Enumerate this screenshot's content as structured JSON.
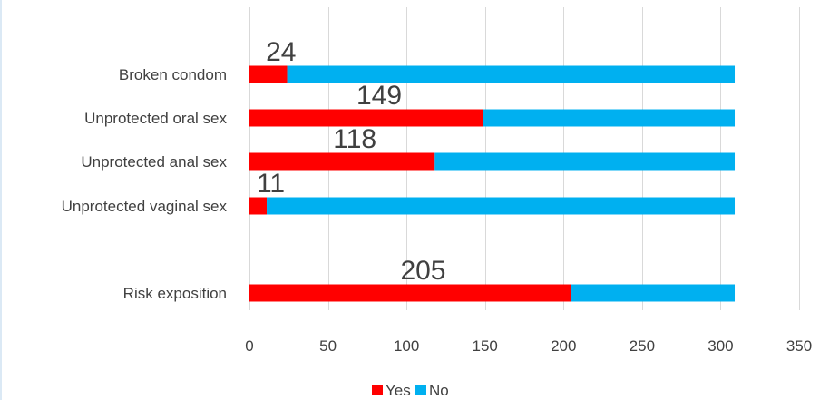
{
  "chart_data": {
    "type": "bar",
    "orientation": "horizontal",
    "stacked": true,
    "categories": [
      "Broken condom",
      "Unprotected oral sex",
      "Unprotected anal sex",
      "Unprotected vaginal sex",
      "Risk exposition"
    ],
    "series": [
      {
        "name": "Yes",
        "color": "#ff0000",
        "values": [
          24,
          149,
          118,
          11,
          205
        ]
      },
      {
        "name": "No",
        "color": "#00b0f0",
        "values": [
          285,
          160,
          191,
          298,
          104
        ]
      }
    ],
    "data_labels": [
      "24",
      "149",
      "118",
      "11",
      "205"
    ],
    "xlim": [
      0,
      350
    ],
    "xticks": [
      0,
      50,
      100,
      150,
      200,
      250,
      300,
      350
    ],
    "grid": true,
    "legend_position": "bottom",
    "title": "",
    "xlabel": "",
    "ylabel": ""
  }
}
